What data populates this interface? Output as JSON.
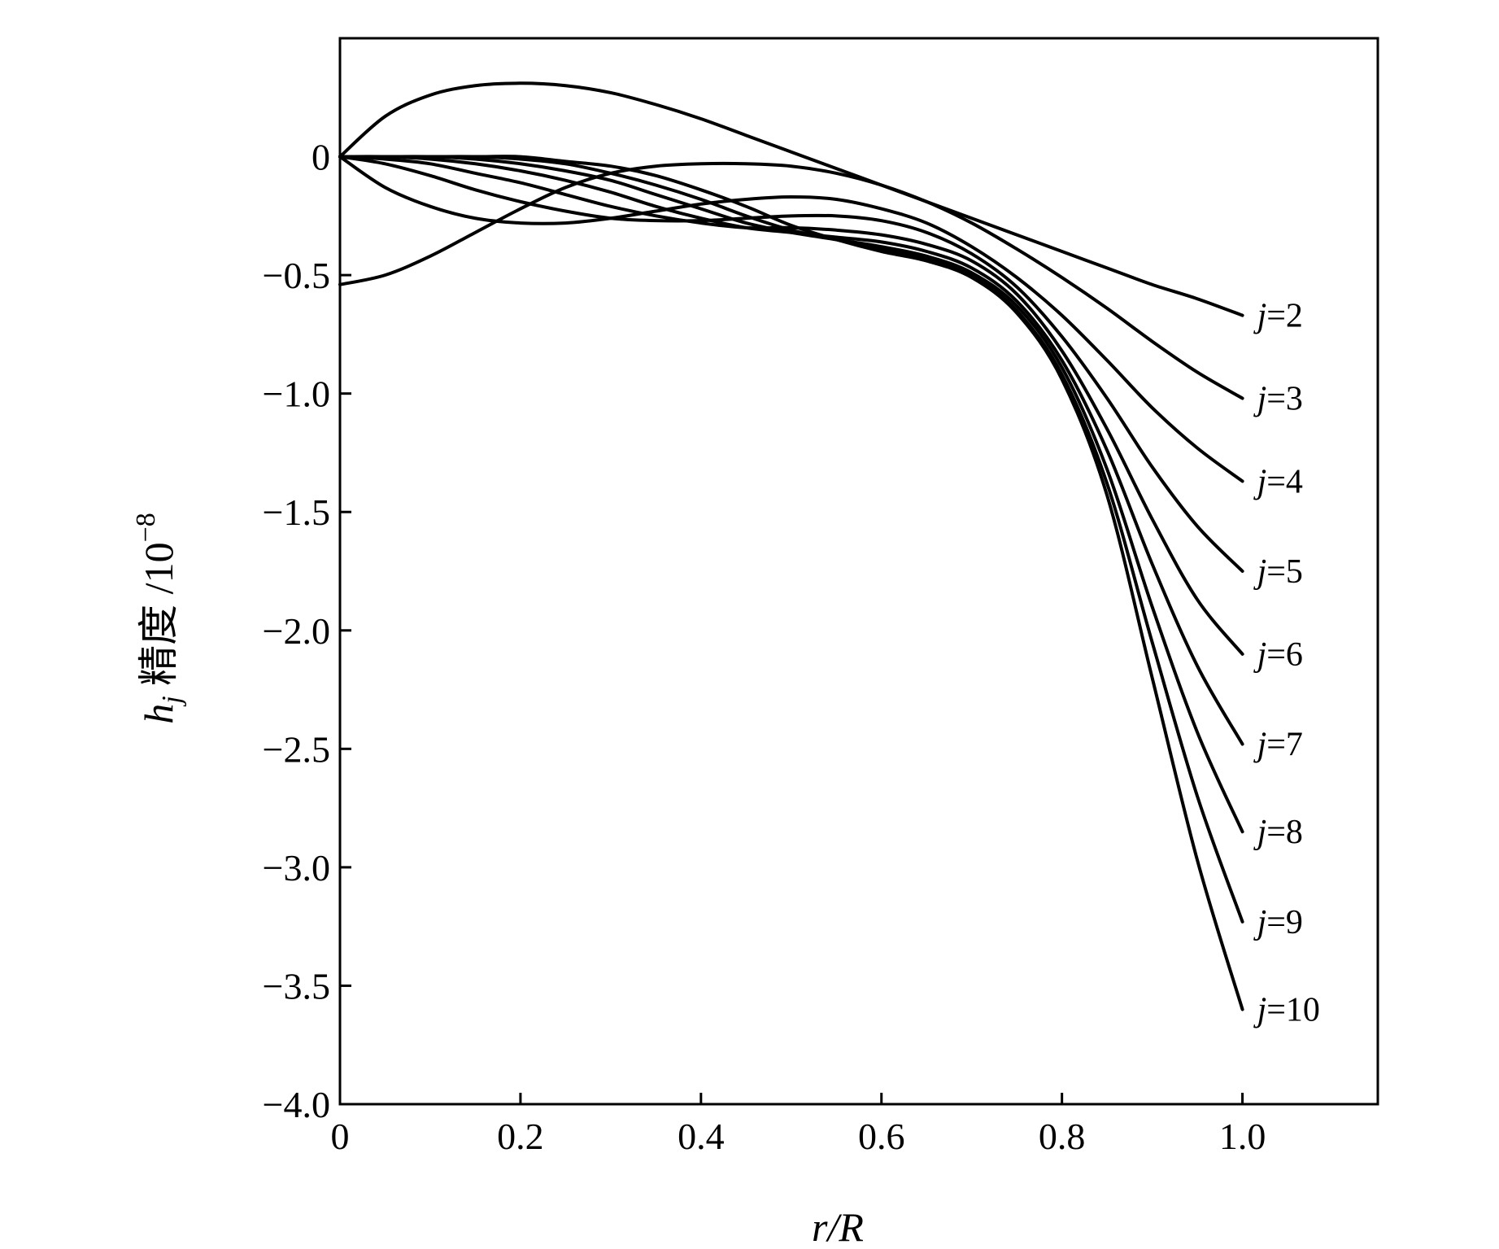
{
  "chart_data": {
    "type": "line",
    "title": "",
    "xlabel": "r/R",
    "ylabel": "h_j 精度 /10^-8",
    "xlim": [
      0,
      1.15
    ],
    "ylim": [
      -4.0,
      0.5
    ],
    "x_ticks": [
      {
        "value": 0,
        "label": "0"
      },
      {
        "value": 0.2,
        "label": "0.2"
      },
      {
        "value": 0.4,
        "label": "0.4"
      },
      {
        "value": 0.6,
        "label": "0.6"
      },
      {
        "value": 0.8,
        "label": "0.8"
      },
      {
        "value": 1.0,
        "label": "1.0"
      }
    ],
    "y_ticks": [
      {
        "value": 0,
        "label": "0"
      },
      {
        "value": -0.5,
        "label": "−0.5"
      },
      {
        "value": -1.0,
        "label": "−1.0"
      },
      {
        "value": -1.5,
        "label": "−1.5"
      },
      {
        "value": -2.0,
        "label": "−2.0"
      },
      {
        "value": -2.5,
        "label": "−2.5"
      },
      {
        "value": -3.0,
        "label": "−3.0"
      },
      {
        "value": -3.5,
        "label": "−3.5"
      },
      {
        "value": -4.0,
        "label": "−4.0"
      }
    ],
    "grid": false,
    "legend": "inline labels at right end of each curve",
    "line_color": "#000000",
    "series": [
      {
        "name": "j=2",
        "x": [
          0,
          0.05,
          0.1,
          0.15,
          0.2,
          0.25,
          0.3,
          0.35,
          0.4,
          0.45,
          0.5,
          0.55,
          0.6,
          0.65,
          0.7,
          0.75,
          0.8,
          0.85,
          0.9,
          0.95,
          1.0
        ],
        "y": [
          0,
          0.17,
          0.26,
          0.3,
          0.31,
          0.3,
          0.27,
          0.22,
          0.16,
          0.09,
          0.02,
          -0.05,
          -0.12,
          -0.19,
          -0.26,
          -0.33,
          -0.4,
          -0.47,
          -0.54,
          -0.6,
          -0.67
        ]
      },
      {
        "name": "j=3",
        "x": [
          0,
          0.05,
          0.1,
          0.15,
          0.2,
          0.25,
          0.3,
          0.35,
          0.4,
          0.45,
          0.5,
          0.55,
          0.6,
          0.65,
          0.7,
          0.75,
          0.8,
          0.85,
          0.9,
          0.95,
          1.0
        ],
        "y": [
          -0.54,
          -0.5,
          -0.42,
          -0.32,
          -0.22,
          -0.13,
          -0.07,
          -0.04,
          -0.03,
          -0.03,
          -0.04,
          -0.07,
          -0.12,
          -0.19,
          -0.28,
          -0.39,
          -0.51,
          -0.64,
          -0.78,
          -0.91,
          -1.02
        ]
      },
      {
        "name": "j=4",
        "x": [
          0,
          0.05,
          0.1,
          0.15,
          0.2,
          0.25,
          0.3,
          0.35,
          0.4,
          0.45,
          0.5,
          0.55,
          0.6,
          0.65,
          0.7,
          0.75,
          0.8,
          0.85,
          0.9,
          0.95,
          1.0
        ],
        "y": [
          0,
          -0.13,
          -0.21,
          -0.26,
          -0.28,
          -0.28,
          -0.26,
          -0.23,
          -0.2,
          -0.18,
          -0.17,
          -0.18,
          -0.22,
          -0.28,
          -0.38,
          -0.51,
          -0.67,
          -0.86,
          -1.06,
          -1.23,
          -1.37
        ]
      },
      {
        "name": "j=5",
        "x": [
          0,
          0.05,
          0.1,
          0.15,
          0.2,
          0.25,
          0.3,
          0.35,
          0.4,
          0.45,
          0.5,
          0.55,
          0.6,
          0.65,
          0.7,
          0.75,
          0.8,
          0.85,
          0.9,
          0.95,
          1.0
        ],
        "y": [
          0,
          -0.03,
          -0.08,
          -0.14,
          -0.19,
          -0.23,
          -0.26,
          -0.27,
          -0.27,
          -0.26,
          -0.25,
          -0.25,
          -0.27,
          -0.32,
          -0.41,
          -0.55,
          -0.76,
          -1.02,
          -1.31,
          -1.56,
          -1.75
        ]
      },
      {
        "name": "j=6",
        "x": [
          0,
          0.05,
          0.1,
          0.15,
          0.2,
          0.25,
          0.3,
          0.35,
          0.4,
          0.45,
          0.5,
          0.55,
          0.6,
          0.65,
          0.7,
          0.75,
          0.8,
          0.85,
          0.9,
          0.95,
          1.0
        ],
        "y": [
          0,
          -0.01,
          -0.03,
          -0.07,
          -0.11,
          -0.16,
          -0.21,
          -0.25,
          -0.28,
          -0.3,
          -0.3,
          -0.31,
          -0.33,
          -0.37,
          -0.44,
          -0.58,
          -0.82,
          -1.15,
          -1.53,
          -1.87,
          -2.1
        ]
      },
      {
        "name": "j=7",
        "x": [
          0,
          0.05,
          0.1,
          0.15,
          0.2,
          0.25,
          0.3,
          0.35,
          0.4,
          0.45,
          0.5,
          0.55,
          0.6,
          0.65,
          0.7,
          0.75,
          0.8,
          0.85,
          0.9,
          0.95,
          1.0
        ],
        "y": [
          0,
          0,
          -0.01,
          -0.03,
          -0.06,
          -0.1,
          -0.15,
          -0.21,
          -0.26,
          -0.3,
          -0.32,
          -0.34,
          -0.36,
          -0.4,
          -0.47,
          -0.61,
          -0.86,
          -1.24,
          -1.72,
          -2.15,
          -2.48
        ]
      },
      {
        "name": "j=8",
        "x": [
          0,
          0.05,
          0.1,
          0.15,
          0.2,
          0.25,
          0.3,
          0.35,
          0.4,
          0.45,
          0.5,
          0.55,
          0.6,
          0.65,
          0.7,
          0.75,
          0.8,
          0.85,
          0.9,
          0.95,
          1.0
        ],
        "y": [
          0,
          0,
          0,
          -0.01,
          -0.03,
          -0.06,
          -0.1,
          -0.16,
          -0.22,
          -0.28,
          -0.32,
          -0.35,
          -0.38,
          -0.42,
          -0.49,
          -0.63,
          -0.89,
          -1.32,
          -1.9,
          -2.43,
          -2.85
        ]
      },
      {
        "name": "j=9",
        "x": [
          0,
          0.05,
          0.1,
          0.15,
          0.2,
          0.25,
          0.3,
          0.35,
          0.4,
          0.45,
          0.5,
          0.55,
          0.6,
          0.65,
          0.7,
          0.75,
          0.8,
          0.85,
          0.9,
          0.95,
          1.0
        ],
        "y": [
          0,
          0,
          0,
          0,
          -0.01,
          -0.03,
          -0.07,
          -0.12,
          -0.18,
          -0.25,
          -0.31,
          -0.35,
          -0.39,
          -0.43,
          -0.5,
          -0.65,
          -0.92,
          -1.38,
          -2.05,
          -2.7,
          -3.23
        ]
      },
      {
        "name": "j=10",
        "x": [
          0,
          0.05,
          0.1,
          0.15,
          0.2,
          0.25,
          0.3,
          0.35,
          0.4,
          0.45,
          0.5,
          0.55,
          0.6,
          0.65,
          0.7,
          0.75,
          0.8,
          0.85,
          0.9,
          0.95,
          1.0
        ],
        "y": [
          0,
          0,
          0,
          0,
          0,
          -0.02,
          -0.04,
          -0.08,
          -0.14,
          -0.21,
          -0.29,
          -0.35,
          -0.4,
          -0.44,
          -0.51,
          -0.66,
          -0.94,
          -1.43,
          -2.2,
          -2.97,
          -3.6
        ]
      }
    ]
  }
}
